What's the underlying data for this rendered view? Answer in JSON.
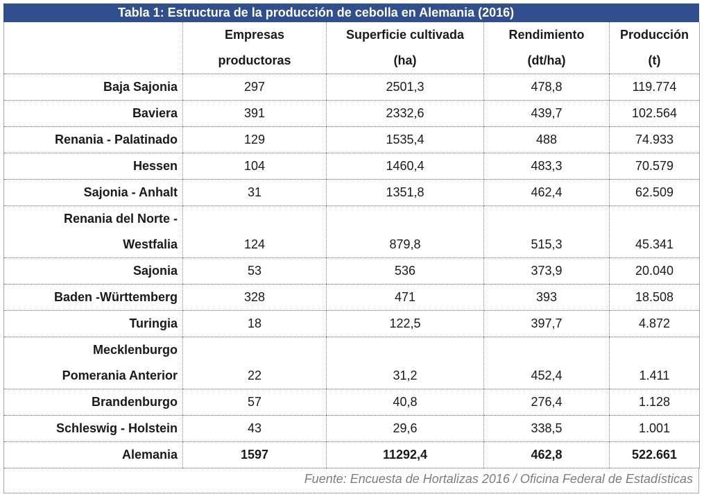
{
  "title": "Tabla 1: Estructura de la producción de cebolla en Alemania (2016)",
  "headers": [
    {
      "line1": "",
      "line2": ""
    },
    {
      "line1": "Empresas",
      "line2": "productoras"
    },
    {
      "line1": "Superficie cultivada",
      "line2": "(ha)"
    },
    {
      "line1": "Rendimiento",
      "line2": "(dt/ha)"
    },
    {
      "line1": "Producción",
      "line2": "(t)"
    }
  ],
  "rows": [
    {
      "region": "Baja Sajonia",
      "empresas": "297",
      "superficie": "2501,3",
      "rendimiento": "478,8",
      "produccion": "119.774"
    },
    {
      "region": "Baviera",
      "empresas": "391",
      "superficie": "2332,6",
      "rendimiento": "439,7",
      "produccion": "102.564"
    },
    {
      "region": "Renania - Palatinado",
      "empresas": "129",
      "superficie": "1535,4",
      "rendimiento": "488",
      "produccion": "74.933"
    },
    {
      "region": "Hessen",
      "empresas": "104",
      "superficie": "1460,4",
      "rendimiento": "483,3",
      "produccion": "70.579"
    },
    {
      "region": "Sajonia - Anhalt",
      "empresas": "31",
      "superficie": "1351,8",
      "rendimiento": "462,4",
      "produccion": "62.509"
    },
    {
      "region_line1": "Renania del Norte -",
      "region_line2": "Westfalia",
      "empresas": "124",
      "superficie": "879,8",
      "rendimiento": "515,3",
      "produccion": "45.341"
    },
    {
      "region": "Sajonia",
      "empresas": "53",
      "superficie": "536",
      "rendimiento": "373,9",
      "produccion": "20.040"
    },
    {
      "region": "Baden -Württemberg",
      "empresas": "328",
      "superficie": "471",
      "rendimiento": "393",
      "produccion": "18.508"
    },
    {
      "region": "Turingia",
      "empresas": "18",
      "superficie": "122,5",
      "rendimiento": "397,7",
      "produccion": "4.872"
    },
    {
      "region_line1": "Mecklenburgo",
      "region_line2": "Pomerania Anterior",
      "empresas": "22",
      "superficie": "31,2",
      "rendimiento": "452,4",
      "produccion": "1.411"
    },
    {
      "region": "Brandenburgo",
      "empresas": "57",
      "superficie": "40,8",
      "rendimiento": "276,4",
      "produccion": "1.128"
    },
    {
      "region": "Schleswig - Holstein",
      "empresas": "43",
      "superficie": "29,6",
      "rendimiento": "338,5",
      "produccion": "1.001"
    }
  ],
  "total": {
    "region": "Alemania",
    "empresas": "1597",
    "superficie": "11292,4",
    "rendimiento": "462,8",
    "produccion": "522.661"
  },
  "footer": "Fuente: Encuesta de Hortalizas 2016 / Oficina Federal de Estadísticas",
  "colors": {
    "title_bg": "#2f4f8f",
    "title_text": "#ffffff",
    "footer_text": "#7d7d7d"
  }
}
